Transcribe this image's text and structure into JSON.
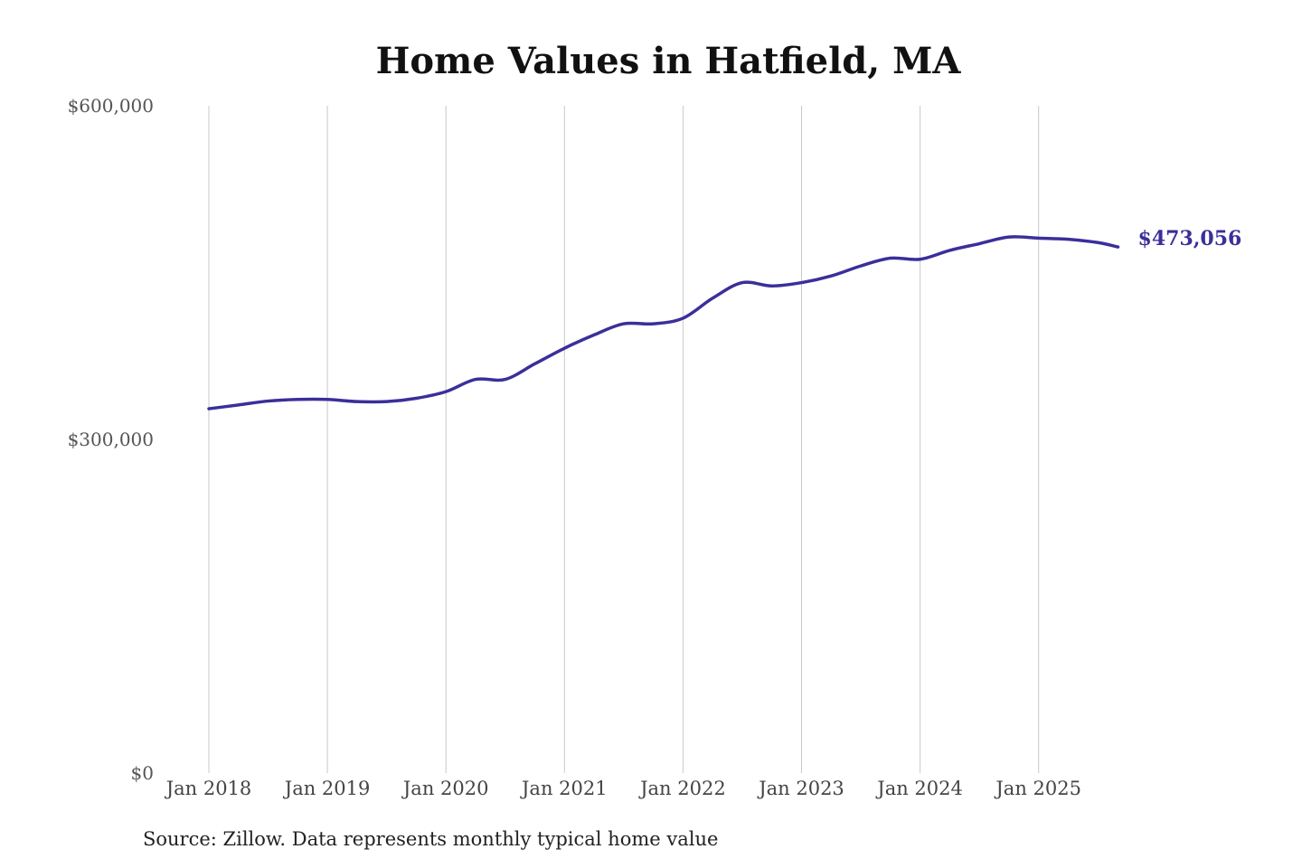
{
  "chart_data": {
    "type": "line",
    "title": "Home Values in Hatfield, MA",
    "source": "Source: Zillow. Data represents monthly typical home value",
    "xlabel": "",
    "ylabel": "",
    "ylim": [
      0,
      600000
    ],
    "y_ticks": [
      {
        "value": 0,
        "label": "$0"
      },
      {
        "value": 300000,
        "label": "$300,000"
      },
      {
        "value": 600000,
        "label": "$600,000"
      }
    ],
    "x_ticks": [
      {
        "value": 2018.0,
        "label": "Jan 2018"
      },
      {
        "value": 2019.0,
        "label": "Jan 2019"
      },
      {
        "value": 2020.0,
        "label": "Jan 2020"
      },
      {
        "value": 2021.0,
        "label": "Jan 2021"
      },
      {
        "value": 2022.0,
        "label": "Jan 2022"
      },
      {
        "value": 2023.0,
        "label": "Jan 2023"
      },
      {
        "value": 2024.0,
        "label": "Jan 2024"
      },
      {
        "value": 2025.0,
        "label": "Jan 2025"
      }
    ],
    "xlim": [
      2018.0,
      2025.67
    ],
    "grid": "vertical",
    "series": [
      {
        "name": "Home value",
        "color": "#3a2f9a",
        "end_label": "$473,056",
        "x": [
          2018.0,
          2018.25,
          2018.5,
          2018.75,
          2019.0,
          2019.25,
          2019.5,
          2019.75,
          2020.0,
          2020.25,
          2020.5,
          2020.75,
          2021.0,
          2021.25,
          2021.5,
          2021.75,
          2022.0,
          2022.25,
          2022.5,
          2022.75,
          2023.0,
          2023.25,
          2023.5,
          2023.75,
          2024.0,
          2024.25,
          2024.5,
          2024.75,
          2025.0,
          2025.25,
          2025.5,
          2025.67
        ],
        "values": [
          327600,
          331000,
          334500,
          336000,
          336000,
          334000,
          334000,
          337000,
          343000,
          354000,
          354000,
          368000,
          382000,
          394000,
          404000,
          404000,
          409000,
          427000,
          441000,
          438000,
          441000,
          447000,
          456000,
          463000,
          462000,
          470000,
          476000,
          482000,
          481000,
          480000,
          477000,
          473056
        ]
      }
    ]
  }
}
